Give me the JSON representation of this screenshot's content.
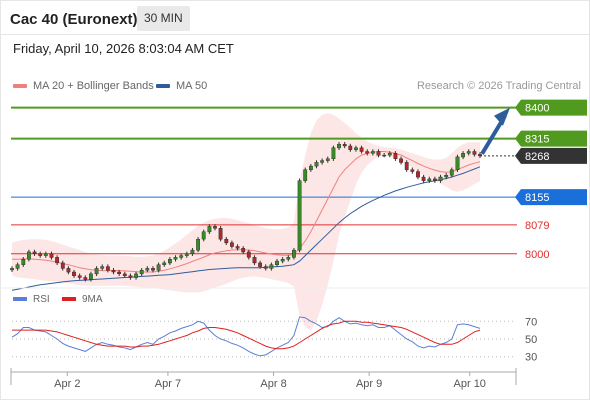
{
  "header": {
    "instrument": "Cac 40 (Euronext)",
    "timeframe": "30 MIN",
    "datetime": "Friday, April 10, 2026 8:03:04 AM CET"
  },
  "legend": {
    "ma20": "MA 20 + Bollinger Bands",
    "ma50": "MA 50",
    "ma20_color": "#f08080",
    "ma50_color": "#2f5d9b"
  },
  "credit": "Research © 2026 Trading Central",
  "rsi_legend": {
    "rsi": "RSI",
    "ma9": "9MA",
    "rsi_color": "#5b7fd6",
    "ma9_color": "#e02020"
  },
  "chart_data": [
    {
      "type": "candlestick",
      "ylim": [
        7920,
        8440
      ],
      "x_ticks": [
        "Apr 2",
        "Apr 7",
        "Apr 8",
        "Apr 9",
        "Apr 10"
      ],
      "x_tick_positions": [
        0.11,
        0.31,
        0.52,
        0.71,
        0.91
      ],
      "levels": [
        {
          "value": 8400,
          "label": "8400",
          "kind": "resistance",
          "color": "#4f9a1f"
        },
        {
          "value": 8315,
          "label": "8315",
          "kind": "resistance",
          "color": "#4f9a1f"
        },
        {
          "value": 8268,
          "label": "8268",
          "kind": "last",
          "color": "#333333"
        },
        {
          "value": 8155,
          "label": "8155",
          "kind": "pivot",
          "color": "#1b6fd8"
        },
        {
          "value": 8079,
          "label": "8079",
          "kind": "support",
          "color": "#e03030"
        },
        {
          "value": 8000,
          "label": "8000",
          "kind": "support",
          "color": "#e03030"
        }
      ],
      "close_series": [
        7960,
        7970,
        7985,
        8005,
        8000,
        7995,
        8000,
        7990,
        7975,
        7960,
        7950,
        7940,
        7935,
        7930,
        7945,
        7960,
        7965,
        7955,
        7950,
        7945,
        7940,
        7935,
        7945,
        7955,
        7960,
        7955,
        7970,
        7975,
        7985,
        7990,
        7995,
        8000,
        8010,
        8040,
        8060,
        8075,
        8070,
        8040,
        8030,
        8020,
        8015,
        8005,
        7990,
        7975,
        7965,
        7960,
        7970,
        7980,
        7985,
        7990,
        8010,
        8200,
        8230,
        8240,
        8250,
        8255,
        8260,
        8290,
        8300,
        8295,
        8285,
        8290,
        8280,
        8275,
        8280,
        8270,
        8270,
        8275,
        8260,
        8250,
        8230,
        8225,
        8210,
        8200,
        8205,
        8200,
        8210,
        8215,
        8230,
        8265,
        8275,
        8280,
        8272,
        8268
      ],
      "ma20_series": [
        7985,
        7985,
        7986,
        7986,
        7985,
        7984,
        7982,
        7980,
        7977,
        7973,
        7970,
        7966,
        7962,
        7959,
        7956,
        7955,
        7954,
        7954,
        7954,
        7954,
        7953,
        7952,
        7951,
        7950,
        7950,
        7950,
        7952,
        7955,
        7959,
        7963,
        7968,
        7973,
        7979,
        7985,
        7991,
        7997,
        8002,
        8005,
        8008,
        8010,
        8011,
        8011,
        8010,
        8008,
        8005,
        8002,
        7999,
        7997,
        7996,
        7996,
        7998,
        8015,
        8035,
        8060,
        8090,
        8120,
        8150,
        8180,
        8210,
        8230,
        8245,
        8260,
        8270,
        8275,
        8278,
        8280,
        8280,
        8278,
        8275,
        8270,
        8262,
        8255,
        8247,
        8240,
        8234,
        8229,
        8225,
        8223,
        8224,
        8230,
        8237,
        8243,
        8248,
        8252
      ],
      "bb_upper": [
        8030,
        8035,
        8038,
        8040,
        8040,
        8040,
        8038,
        8035,
        8030,
        8025,
        8020,
        8015,
        8010,
        8005,
        8000,
        7998,
        7996,
        7995,
        7995,
        7995,
        7994,
        7993,
        7992,
        7992,
        7993,
        7995,
        8000,
        8008,
        8018,
        8028,
        8040,
        8052,
        8064,
        8076,
        8085,
        8092,
        8096,
        8098,
        8098,
        8096,
        8092,
        8088,
        8083,
        8078,
        8074,
        8070,
        8068,
        8067,
        8068,
        8072,
        8085,
        8200,
        8270,
        8330,
        8365,
        8380,
        8385,
        8380,
        8370,
        8358,
        8345,
        8330,
        8318,
        8308,
        8300,
        8295,
        8292,
        8290,
        8288,
        8285,
        8280,
        8275,
        8270,
        8265,
        8260,
        8258,
        8258,
        8262,
        8275,
        8290,
        8300,
        8305,
        8305,
        8305
      ],
      "bb_lower": [
        7940,
        7935,
        7934,
        7932,
        7930,
        7928,
        7926,
        7925,
        7924,
        7921,
        7920,
        7917,
        7914,
        7913,
        7912,
        7912,
        7912,
        7913,
        7913,
        7913,
        7912,
        7911,
        7910,
        7908,
        7907,
        7905,
        7904,
        7902,
        7900,
        7898,
        7896,
        7894,
        7894,
        7894,
        7897,
        7902,
        7908,
        7912,
        7918,
        7924,
        7930,
        7934,
        7937,
        7938,
        7936,
        7934,
        7930,
        7927,
        7924,
        7920,
        7911,
        7830,
        7800,
        7790,
        7815,
        7860,
        7915,
        7980,
        8050,
        8102,
        8145,
        8190,
        8222,
        8242,
        8256,
        8265,
        8268,
        8266,
        8262,
        8255,
        8244,
        8235,
        8224,
        8215,
        8208,
        8200,
        8192,
        8184,
        8173,
        8170,
        8174,
        8181,
        8191,
        8199
      ],
      "ma50_series": [
        7900,
        7903,
        7906,
        7909,
        7912,
        7915,
        7917,
        7919,
        7921,
        7923,
        7925,
        7926,
        7927,
        7928,
        7929,
        7930,
        7931,
        7932,
        7933,
        7934,
        7935,
        7936,
        7937,
        7938,
        7939,
        7940,
        7941,
        7942,
        7943,
        7945,
        7947,
        7949,
        7951,
        7953,
        7955,
        7957,
        7958,
        7959,
        7960,
        7961,
        7962,
        7962,
        7962,
        7962,
        7962,
        7963,
        7964,
        7965,
        7966,
        7968,
        7970,
        7980,
        7995,
        8010,
        8025,
        8040,
        8055,
        8070,
        8085,
        8098,
        8110,
        8120,
        8130,
        8138,
        8146,
        8153,
        8160,
        8166,
        8172,
        8177,
        8182,
        8186,
        8190,
        8194,
        8197,
        8200,
        8203,
        8206,
        8210,
        8215,
        8220,
        8226,
        8232,
        8238
      ]
    },
    {
      "type": "line",
      "title": "RSI",
      "ylim": [
        15,
        85
      ],
      "y_ticks": [
        70,
        50,
        30
      ],
      "series": [
        {
          "name": "RSI",
          "values": [
            52,
            56,
            63,
            63,
            60,
            59,
            58,
            54,
            50,
            45,
            42,
            40,
            38,
            36,
            40,
            44,
            46,
            44,
            43,
            41,
            40,
            38,
            41,
            44,
            46,
            44,
            50,
            53,
            57,
            59,
            62,
            64,
            66,
            70,
            68,
            60,
            54,
            50,
            48,
            45,
            43,
            40,
            36,
            33,
            31,
            32,
            36,
            40,
            43,
            46,
            54,
            75,
            74,
            70,
            67,
            63,
            64,
            70,
            74,
            70,
            67,
            68,
            66,
            65,
            66,
            63,
            63,
            65,
            60,
            55,
            50,
            47,
            42,
            40,
            42,
            41,
            44,
            46,
            50,
            66,
            67,
            66,
            64,
            62
          ]
        },
        {
          "name": "9MA",
          "values": [
            60,
            60,
            60,
            60,
            60,
            60,
            60,
            59,
            58,
            56,
            54,
            52,
            50,
            48,
            46,
            44,
            43,
            42,
            42,
            42,
            42,
            41,
            41,
            42,
            42,
            43,
            44,
            46,
            48,
            50,
            52,
            54,
            57,
            59,
            62,
            63,
            63,
            62,
            61,
            59,
            57,
            54,
            51,
            48,
            45,
            42,
            40,
            39,
            39,
            40,
            42,
            46,
            50,
            54,
            58,
            62,
            65,
            67,
            68,
            70,
            70,
            70,
            69,
            69,
            68,
            67,
            66,
            65,
            64,
            63,
            61,
            58,
            55,
            52,
            49,
            46,
            44,
            44,
            44,
            46,
            50,
            54,
            58,
            60
          ]
        }
      ]
    }
  ]
}
